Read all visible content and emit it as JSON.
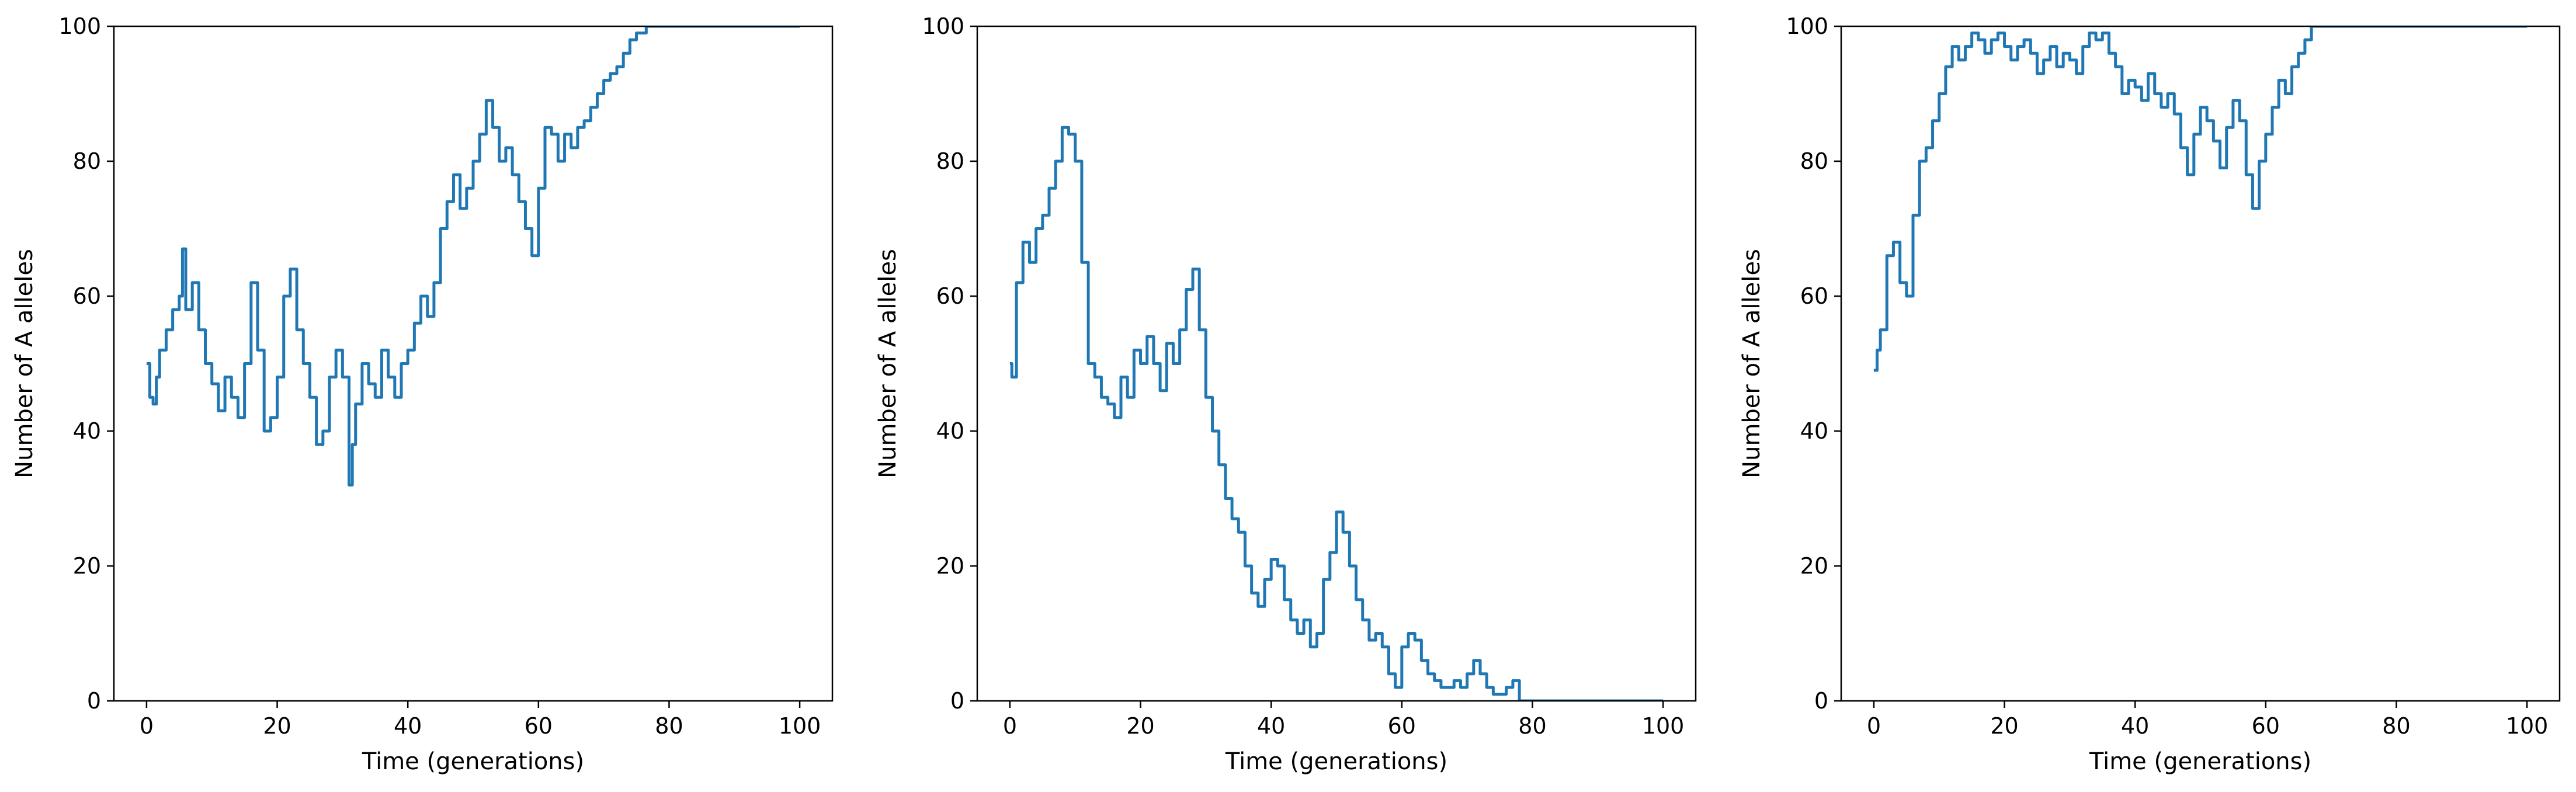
{
  "chart_data": [
    {
      "type": "line",
      "xlabel": "Time (generations)",
      "ylabel": "Number of A alleles",
      "xlim": [
        -5,
        105
      ],
      "ylim": [
        0,
        100
      ],
      "xticks": [
        "0",
        "20",
        "40",
        "60",
        "80",
        "100"
      ],
      "yticks": [
        "0",
        "20",
        "40",
        "60",
        "80",
        "100"
      ],
      "grid": false,
      "series": [
        {
          "color": "#1f77b4",
          "x": [
            0,
            0.5,
            1,
            1.5,
            2,
            3,
            4,
            5,
            5.5,
            6,
            7,
            8,
            9,
            10,
            11,
            12,
            13,
            14,
            15,
            16,
            17,
            18,
            19,
            20,
            21,
            22,
            23,
            24,
            25,
            26,
            27,
            28,
            29,
            30,
            31,
            31.5,
            32,
            33,
            34,
            35,
            36,
            37,
            38,
            39,
            40,
            41,
            42,
            43,
            44,
            45,
            46,
            47,
            48,
            49,
            50,
            51,
            52,
            53,
            54,
            55,
            56,
            57,
            58,
            59,
            60,
            61,
            62,
            63,
            64,
            65,
            66,
            67,
            68,
            69,
            70,
            71,
            72,
            73,
            74,
            75,
            76,
            76.5,
            77,
            100
          ],
          "y": [
            50,
            45,
            44,
            48,
            52,
            55,
            58,
            60,
            67,
            58,
            62,
            55,
            50,
            47,
            43,
            48,
            45,
            42,
            50,
            62,
            52,
            40,
            42,
            48,
            60,
            64,
            55,
            50,
            45,
            38,
            40,
            48,
            52,
            48,
            32,
            38,
            44,
            50,
            47,
            45,
            52,
            48,
            45,
            50,
            52,
            56,
            60,
            57,
            62,
            70,
            74,
            78,
            73,
            76,
            80,
            84,
            89,
            85,
            80,
            82,
            78,
            74,
            70,
            66,
            76,
            85,
            84,
            80,
            84,
            82,
            85,
            86,
            88,
            90,
            92,
            93,
            94,
            96,
            98,
            99,
            99,
            100,
            100,
            100
          ]
        }
      ]
    },
    {
      "type": "line",
      "xlabel": "Time (generations)",
      "ylabel": "Number of A alleles",
      "xlim": [
        -5,
        105
      ],
      "ylim": [
        0,
        100
      ],
      "xticks": [
        "0",
        "20",
        "40",
        "60",
        "80",
        "100"
      ],
      "yticks": [
        "0",
        "20",
        "40",
        "60",
        "80",
        "100"
      ],
      "grid": false,
      "series": [
        {
          "color": "#1f77b4",
          "x": [
            0,
            0.3,
            1,
            2,
            3,
            4,
            5,
            6,
            7,
            8,
            9,
            10,
            11,
            12,
            13,
            14,
            15,
            16,
            17,
            18,
            19,
            20,
            21,
            22,
            23,
            24,
            25,
            26,
            27,
            28,
            29,
            30,
            31,
            32,
            33,
            34,
            35,
            36,
            37,
            38,
            39,
            40,
            41,
            42,
            43,
            44,
            45,
            46,
            47,
            48,
            49,
            50,
            51,
            52,
            53,
            54,
            55,
            56,
            57,
            58,
            59,
            60,
            61,
            62,
            63,
            64,
            65,
            66,
            67,
            68,
            69,
            70,
            71,
            72,
            73,
            74,
            75,
            76,
            77,
            78,
            100
          ],
          "y": [
            50,
            48,
            62,
            68,
            65,
            70,
            72,
            76,
            80,
            85,
            84,
            80,
            65,
            50,
            48,
            45,
            44,
            42,
            48,
            45,
            52,
            50,
            54,
            50,
            46,
            53,
            50,
            55,
            61,
            64,
            55,
            45,
            40,
            35,
            30,
            27,
            25,
            20,
            16,
            14,
            18,
            21,
            20,
            15,
            12,
            10,
            12,
            8,
            10,
            18,
            22,
            28,
            25,
            20,
            15,
            12,
            9,
            10,
            8,
            4,
            2,
            8,
            10,
            9,
            6,
            4,
            3,
            2,
            2,
            3,
            2,
            4,
            6,
            4,
            2,
            1,
            1,
            2,
            3,
            0,
            0
          ]
        }
      ]
    },
    {
      "type": "line",
      "xlabel": "Time (generations)",
      "ylabel": "Number of A alleles",
      "xlim": [
        -5,
        105
      ],
      "ylim": [
        0,
        100
      ],
      "xticks": [
        "0",
        "20",
        "40",
        "60",
        "80",
        "100"
      ],
      "yticks": [
        "0",
        "20",
        "40",
        "60",
        "80",
        "100"
      ],
      "grid": false,
      "series": [
        {
          "color": "#1f77b4",
          "x": [
            0,
            0.5,
            1,
            2,
            3,
            4,
            5,
            6,
            7,
            8,
            9,
            10,
            11,
            12,
            13,
            14,
            15,
            16,
            17,
            18,
            19,
            20,
            21,
            22,
            23,
            24,
            25,
            26,
            27,
            28,
            29,
            30,
            31,
            32,
            33,
            34,
            35,
            36,
            37,
            38,
            39,
            40,
            41,
            42,
            43,
            44,
            45,
            46,
            47,
            48,
            49,
            50,
            51,
            52,
            53,
            54,
            55,
            56,
            57,
            58,
            59,
            60,
            61,
            62,
            63,
            64,
            65,
            66,
            67,
            68,
            100
          ],
          "y": [
            49,
            52,
            55,
            66,
            68,
            62,
            60,
            72,
            80,
            82,
            86,
            90,
            94,
            97,
            95,
            97,
            99,
            98,
            96,
            98,
            99,
            97,
            95,
            97,
            98,
            96,
            93,
            95,
            97,
            94,
            96,
            95,
            93,
            97,
            99,
            98,
            99,
            96,
            94,
            90,
            92,
            91,
            89,
            93,
            90,
            88,
            90,
            87,
            82,
            78,
            84,
            88,
            86,
            83,
            79,
            85,
            89,
            86,
            78,
            73,
            80,
            84,
            88,
            92,
            90,
            94,
            96,
            98,
            100,
            100,
            100
          ]
        }
      ]
    }
  ]
}
